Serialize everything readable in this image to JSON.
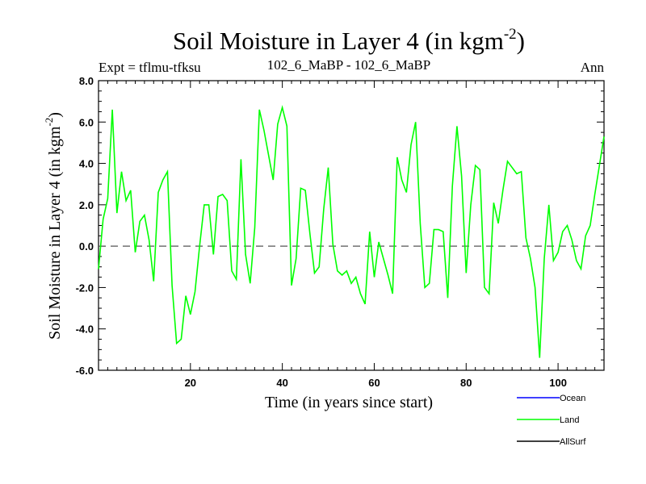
{
  "chart_data": {
    "type": "line",
    "title": "Soil Moisture in Layer 4 (in kgm",
    "title_sup": "-2",
    "title_close": ")",
    "subtitle_left": "Expt = tflmu-tfksu",
    "subtitle_center": "102_6_MaBP - 102_6_MaBP",
    "subtitle_right": "Ann",
    "xlabel": "Time (in years since start)",
    "ylabel": "Soil Moisture in Layer 4 (in kgm",
    "ylabel_sup": "-2",
    "ylabel_close": ")",
    "xlim": [
      0,
      110
    ],
    "ylim": [
      -6.0,
      8.0
    ],
    "xticks": [
      20,
      40,
      60,
      80,
      100
    ],
    "xtick_labels": [
      "20",
      "40",
      "60",
      "80",
      "100"
    ],
    "yticks": [
      -6.0,
      -4.0,
      -2.0,
      0.0,
      2.0,
      4.0,
      6.0,
      8.0
    ],
    "ytick_labels": [
      "-6.0",
      "-4.0",
      "-2.0",
      "0.0",
      "2.0",
      "4.0",
      "6.0",
      "8.0"
    ],
    "zero_line": 0.0,
    "series": [
      {
        "name": "Ocean",
        "color": "#0000ff",
        "values": []
      },
      {
        "name": "Land",
        "color": "#00ff00",
        "x": [
          0,
          1,
          2,
          3,
          4,
          5,
          6,
          7,
          8,
          9,
          10,
          11,
          12,
          13,
          14,
          15,
          16,
          17,
          18,
          19,
          20,
          21,
          22,
          23,
          24,
          25,
          26,
          27,
          28,
          29,
          30,
          31,
          32,
          33,
          34,
          35,
          36,
          37,
          38,
          39,
          40,
          41,
          42,
          43,
          44,
          45,
          46,
          47,
          48,
          49,
          50,
          51,
          52,
          53,
          54,
          55,
          56,
          57,
          58,
          59,
          60,
          61,
          62,
          63,
          64,
          65,
          66,
          67,
          68,
          69,
          70,
          71,
          72,
          73,
          74,
          75,
          76,
          77,
          78,
          79,
          80,
          81,
          82,
          83,
          84,
          85,
          86,
          87,
          88,
          89,
          90,
          91,
          92,
          93,
          94,
          95,
          96,
          97,
          98,
          99,
          100,
          101,
          102,
          103,
          104,
          105,
          106,
          107,
          108,
          109,
          110
        ],
        "values": [
          -1.1,
          1.3,
          2.3,
          6.6,
          1.6,
          3.6,
          2.2,
          2.7,
          -0.3,
          1.2,
          1.5,
          0.3,
          -1.7,
          2.6,
          3.2,
          3.6,
          -1.9,
          -4.7,
          -4.5,
          -2.4,
          -3.3,
          -2.2,
          0.0,
          2.0,
          2.0,
          -0.4,
          2.4,
          2.5,
          2.2,
          -1.2,
          -1.6,
          4.2,
          -0.4,
          -1.8,
          0.9,
          6.6,
          5.6,
          4.4,
          3.2,
          5.9,
          6.7,
          5.8,
          -1.9,
          -0.6,
          2.8,
          2.7,
          0.6,
          -1.3,
          -1.0,
          1.8,
          3.8,
          0.1,
          -1.2,
          -1.4,
          -1.2,
          -1.8,
          -1.5,
          -2.3,
          -2.8,
          0.7,
          -1.5,
          0.2,
          -0.6,
          -1.4,
          -2.3,
          4.3,
          3.2,
          2.6,
          4.9,
          6.0,
          1.1,
          -2.0,
          -1.8,
          0.8,
          0.8,
          0.7,
          -2.5,
          2.9,
          5.8,
          3.4,
          -1.3,
          2.0,
          3.9,
          3.7,
          -2.0,
          -2.3,
          2.1,
          1.1,
          2.7,
          4.1,
          3.8,
          3.5,
          3.6,
          0.4,
          -0.6,
          -2.0,
          -5.4,
          -0.6,
          2.0,
          -0.7,
          -0.3,
          0.7,
          1.0,
          0.3,
          -0.7,
          -1.1,
          0.5,
          1.0,
          2.5,
          3.9,
          5.3
        ]
      },
      {
        "name": "AllSurf",
        "color": "#000000",
        "values": []
      }
    ],
    "legend": [
      "Ocean",
      "Land",
      "AllSurf"
    ],
    "legend_position": "bottom-right"
  }
}
